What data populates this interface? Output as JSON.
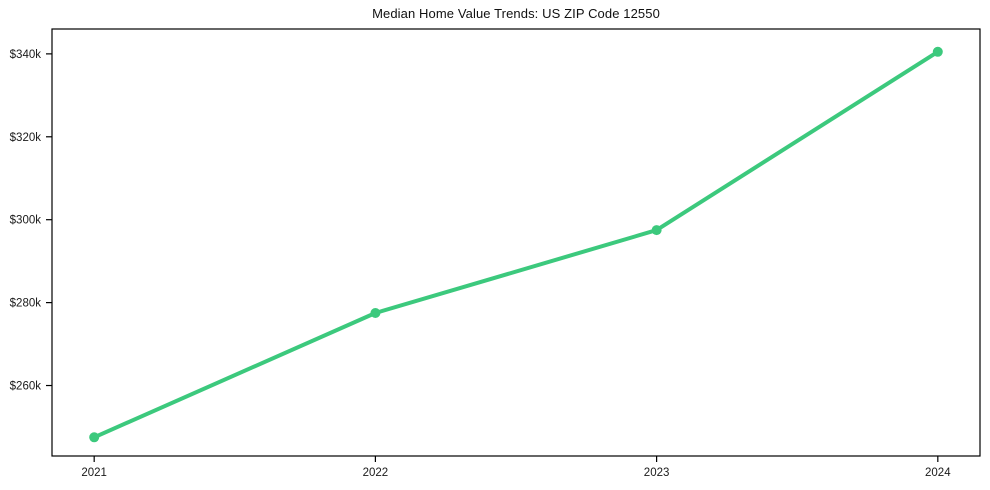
{
  "chart_data": {
    "type": "line",
    "title": "Median Home Value Trends: US ZIP Code 12550",
    "x": [
      2021,
      2022,
      2023,
      2024
    ],
    "x_labels": [
      "2021",
      "2022",
      "2023",
      "2024"
    ],
    "series": [
      {
        "name": "Median home value",
        "values": [
          247500,
          277500,
          297500,
          340500
        ]
      }
    ],
    "y_ticks": [
      260000,
      280000,
      300000,
      320000,
      340000
    ],
    "y_tick_labels": [
      "$260k",
      "$280k",
      "$300k",
      "$320k",
      "$340k"
    ],
    "xlim": [
      2020.85,
      2024.15
    ],
    "ylim": [
      243000,
      346000
    ],
    "grid": false,
    "legend": false,
    "line_color": "#3cc97d",
    "frame_color": "#000000",
    "marker": "circle"
  }
}
